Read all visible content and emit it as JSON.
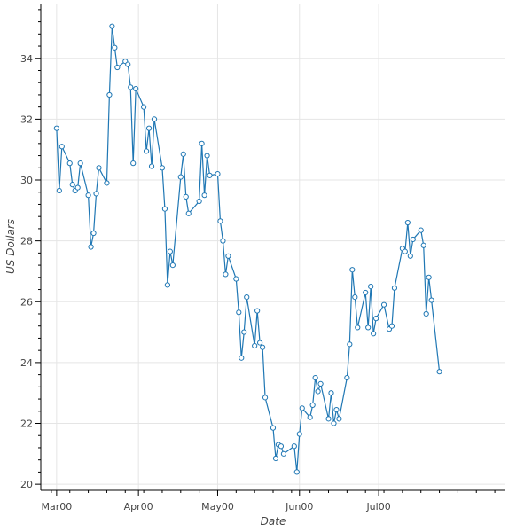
{
  "chart_data": {
    "type": "line",
    "xlabel": "Date",
    "ylabel": "US Dollars",
    "x_ticks": [
      {
        "label": "Mar00",
        "date": "2000-03-01"
      },
      {
        "label": "Apr00",
        "date": "2000-04-01"
      },
      {
        "label": "May00",
        "date": "2000-05-01"
      },
      {
        "label": "Jun00",
        "date": "2000-06-01"
      },
      {
        "label": "Jul00",
        "date": "2000-07-01"
      }
    ],
    "y_ticks": [
      20,
      22,
      24,
      26,
      28,
      30,
      32,
      34
    ],
    "xlim": [
      "2000-02-24",
      "2000-08-18"
    ],
    "ylim": [
      19.8,
      35.8
    ],
    "grid": true,
    "line_color": "#1f77b4",
    "marker_fill": "#ffffff",
    "series": [
      {
        "points": [
          [
            "2000-03-01",
            31.7
          ],
          [
            "2000-03-02",
            29.65
          ],
          [
            "2000-03-03",
            31.1
          ],
          [
            "2000-03-06",
            30.55
          ],
          [
            "2000-03-07",
            29.85
          ],
          [
            "2000-03-08",
            29.65
          ],
          [
            "2000-03-09",
            29.75
          ],
          [
            "2000-03-10",
            30.55
          ],
          [
            "2000-03-13",
            29.5
          ],
          [
            "2000-03-14",
            27.8
          ],
          [
            "2000-03-15",
            28.25
          ],
          [
            "2000-03-16",
            29.55
          ],
          [
            "2000-03-17",
            30.4
          ],
          [
            "2000-03-20",
            29.9
          ],
          [
            "2000-03-21",
            32.8
          ],
          [
            "2000-03-22",
            35.05
          ],
          [
            "2000-03-23",
            34.35
          ],
          [
            "2000-03-24",
            33.7
          ],
          [
            "2000-03-27",
            33.9
          ],
          [
            "2000-03-28",
            33.8
          ],
          [
            "2000-03-29",
            33.05
          ],
          [
            "2000-03-30",
            30.55
          ],
          [
            "2000-03-31",
            33.0
          ],
          [
            "2000-04-03",
            32.4
          ],
          [
            "2000-04-04",
            30.95
          ],
          [
            "2000-04-05",
            31.7
          ],
          [
            "2000-04-06",
            30.45
          ],
          [
            "2000-04-07",
            32.0
          ],
          [
            "2000-04-10",
            30.4
          ],
          [
            "2000-04-11",
            29.05
          ],
          [
            "2000-04-12",
            26.55
          ],
          [
            "2000-04-13",
            27.65
          ],
          [
            "2000-04-14",
            27.2
          ],
          [
            "2000-04-17",
            30.1
          ],
          [
            "2000-04-18",
            30.85
          ],
          [
            "2000-04-19",
            29.45
          ],
          [
            "2000-04-20",
            28.9
          ],
          [
            "2000-04-24",
            29.3
          ],
          [
            "2000-04-25",
            31.2
          ],
          [
            "2000-04-26",
            29.5
          ],
          [
            "2000-04-27",
            30.8
          ],
          [
            "2000-04-28",
            30.15
          ],
          [
            "2000-05-01",
            30.2
          ],
          [
            "2000-05-02",
            28.65
          ],
          [
            "2000-05-03",
            28.0
          ],
          [
            "2000-05-04",
            26.9
          ],
          [
            "2000-05-05",
            27.5
          ],
          [
            "2000-05-08",
            26.75
          ],
          [
            "2000-05-09",
            25.65
          ],
          [
            "2000-05-10",
            24.15
          ],
          [
            "2000-05-11",
            25.0
          ],
          [
            "2000-05-12",
            26.15
          ],
          [
            "2000-05-15",
            24.55
          ],
          [
            "2000-05-16",
            25.7
          ],
          [
            "2000-05-17",
            24.65
          ],
          [
            "2000-05-18",
            24.5
          ],
          [
            "2000-05-19",
            22.85
          ],
          [
            "2000-05-22",
            21.85
          ],
          [
            "2000-05-23",
            20.85
          ],
          [
            "2000-05-24",
            21.3
          ],
          [
            "2000-05-25",
            21.25
          ],
          [
            "2000-05-26",
            21.0
          ],
          [
            "2000-05-30",
            21.25
          ],
          [
            "2000-05-31",
            20.4
          ],
          [
            "2000-06-01",
            21.65
          ],
          [
            "2000-06-02",
            22.5
          ],
          [
            "2000-06-05",
            22.2
          ],
          [
            "2000-06-06",
            22.6
          ],
          [
            "2000-06-07",
            23.5
          ],
          [
            "2000-06-08",
            23.05
          ],
          [
            "2000-06-09",
            23.3
          ],
          [
            "2000-06-12",
            22.15
          ],
          [
            "2000-06-13",
            23.0
          ],
          [
            "2000-06-14",
            22.0
          ],
          [
            "2000-06-15",
            22.45
          ],
          [
            "2000-06-16",
            22.15
          ],
          [
            "2000-06-19",
            23.5
          ],
          [
            "2000-06-20",
            24.6
          ],
          [
            "2000-06-21",
            27.05
          ],
          [
            "2000-06-22",
            26.15
          ],
          [
            "2000-06-23",
            25.15
          ],
          [
            "2000-06-26",
            26.3
          ],
          [
            "2000-06-27",
            25.15
          ],
          [
            "2000-06-28",
            26.5
          ],
          [
            "2000-06-29",
            24.95
          ],
          [
            "2000-06-30",
            25.45
          ],
          [
            "2000-07-03",
            25.9
          ],
          [
            "2000-07-05",
            25.1
          ],
          [
            "2000-07-06",
            25.2
          ],
          [
            "2000-07-07",
            26.45
          ],
          [
            "2000-07-10",
            27.75
          ],
          [
            "2000-07-11",
            27.65
          ],
          [
            "2000-07-12",
            28.6
          ],
          [
            "2000-07-13",
            27.5
          ],
          [
            "2000-07-14",
            28.05
          ],
          [
            "2000-07-17",
            28.35
          ],
          [
            "2000-07-18",
            27.85
          ],
          [
            "2000-07-19",
            25.6
          ],
          [
            "2000-07-20",
            26.8
          ],
          [
            "2000-07-21",
            26.05
          ],
          [
            "2000-07-24",
            23.7
          ]
        ]
      }
    ]
  }
}
